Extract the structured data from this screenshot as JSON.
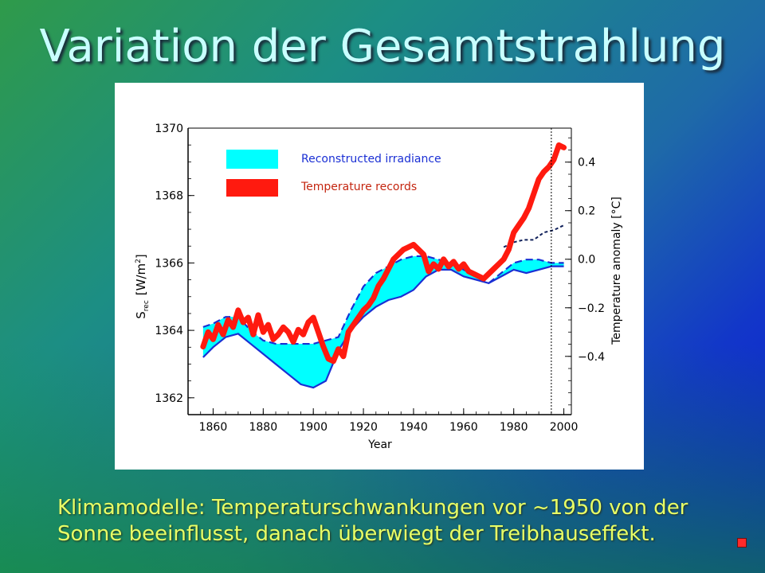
{
  "slide": {
    "title": "Variation der Gesamtstrahlung",
    "caption_line1": "Klimamodelle: Temperaturschwankungen vor ~1950 von der",
    "caption_line2": "Sonne beeinflusst, danach überwiegt der Treibhauseffekt."
  },
  "colors": {
    "irradiance_fill": "#00ffff",
    "irradiance_line": "#1a2fd4",
    "temperature": "#ff1a0f",
    "title_text": "#c8ffff",
    "caption_text": "#e8ff66"
  },
  "chart_data": {
    "type": "area",
    "xlabel": "Year",
    "ylabel_left": "S_rec [W/m²]",
    "ylabel_left_main": "S",
    "ylabel_left_sub": "rec",
    "ylabel_left_unit": "[W/m",
    "ylabel_left_sup": "2",
    "ylabel_left_close": "]",
    "ylabel_right": "Temperature anomaly [°C]",
    "xlim": [
      1850,
      2003
    ],
    "ylim_left": [
      1361.5,
      1370
    ],
    "ylim_right": [
      -0.64,
      0.54
    ],
    "x_ticks": [
      "1860",
      "1880",
      "1900",
      "1920",
      "1940",
      "1960",
      "1980",
      "2000"
    ],
    "y_left_ticks": [
      "1362",
      "1364",
      "1366",
      "1368",
      "1370"
    ],
    "y_right_ticks": [
      "-0.4",
      "-0.2",
      "0.0",
      "0.2",
      "0.4"
    ],
    "vertical_marker_year": 1995,
    "legend": [
      {
        "label": "Reconstructed irradiance",
        "color": "#00ffff"
      },
      {
        "label": "Temperature records",
        "color": "#ff1a0f"
      }
    ],
    "series": [
      {
        "name": "Reconstructed irradiance",
        "kind": "band",
        "x": [
          1856,
          1860,
          1865,
          1870,
          1875,
          1880,
          1885,
          1890,
          1895,
          1900,
          1905,
          1910,
          1915,
          1920,
          1925,
          1930,
          1935,
          1940,
          1945,
          1950,
          1955,
          1960,
          1965,
          1970,
          1975,
          1980,
          1985,
          1990,
          1995,
          2000
        ],
        "upper": [
          1364.1,
          1364.2,
          1364.4,
          1364.4,
          1364.0,
          1363.7,
          1363.6,
          1363.6,
          1363.6,
          1363.6,
          1363.7,
          1363.8,
          1364.6,
          1365.3,
          1365.7,
          1365.9,
          1366.1,
          1366.2,
          1366.2,
          1366.1,
          1366.0,
          1365.8,
          1365.6,
          1365.4,
          1365.7,
          1366.0,
          1366.1,
          1366.1,
          1366.0,
          1366.0
        ],
        "lower": [
          1363.2,
          1363.5,
          1363.8,
          1363.9,
          1363.6,
          1363.3,
          1363.0,
          1362.7,
          1362.4,
          1362.3,
          1362.5,
          1363.4,
          1364.0,
          1364.4,
          1364.7,
          1364.9,
          1365.0,
          1365.2,
          1365.6,
          1365.8,
          1365.8,
          1365.6,
          1365.5,
          1365.4,
          1365.6,
          1365.8,
          1365.7,
          1365.8,
          1365.9,
          1365.9
        ]
      },
      {
        "name": "Temperature records",
        "kind": "thick-line",
        "axis": "right",
        "x": [
          1856,
          1858,
          1860,
          1862,
          1864,
          1866,
          1868,
          1870,
          1872,
          1874,
          1876,
          1878,
          1880,
          1882,
          1884,
          1886,
          1888,
          1890,
          1892,
          1894,
          1896,
          1898,
          1900,
          1902,
          1904,
          1906,
          1908,
          1910,
          1912,
          1914,
          1916,
          1918,
          1920,
          1922,
          1924,
          1926,
          1928,
          1930,
          1932,
          1934,
          1936,
          1938,
          1940,
          1942,
          1944,
          1946,
          1948,
          1950,
          1952,
          1954,
          1956,
          1958,
          1960,
          1962,
          1964,
          1966,
          1968,
          1970,
          1972,
          1974,
          1976,
          1978,
          1980,
          1982,
          1984,
          1986,
          1988,
          1990,
          1992,
          1994,
          1996,
          1998,
          2000
        ],
        "values": [
          -0.36,
          -0.3,
          -0.33,
          -0.27,
          -0.31,
          -0.25,
          -0.28,
          -0.21,
          -0.26,
          -0.24,
          -0.31,
          -0.23,
          -0.3,
          -0.27,
          -0.33,
          -0.31,
          -0.28,
          -0.3,
          -0.34,
          -0.29,
          -0.31,
          -0.26,
          -0.24,
          -0.3,
          -0.36,
          -0.41,
          -0.42,
          -0.37,
          -0.4,
          -0.3,
          -0.27,
          -0.24,
          -0.21,
          -0.19,
          -0.16,
          -0.11,
          -0.08,
          -0.04,
          0.0,
          0.02,
          0.04,
          0.05,
          0.06,
          0.04,
          0.02,
          -0.05,
          -0.02,
          -0.04,
          0.0,
          -0.03,
          -0.01,
          -0.04,
          -0.02,
          -0.05,
          -0.06,
          -0.07,
          -0.08,
          -0.06,
          -0.04,
          -0.02,
          0.0,
          0.04,
          0.11,
          0.14,
          0.17,
          0.21,
          0.27,
          0.33,
          0.36,
          0.38,
          0.41,
          0.47,
          0.46
        ]
      },
      {
        "name": "Irradiance extension",
        "kind": "dashed-line",
        "axis": "right",
        "x": [
          1976,
          1980,
          1984,
          1988,
          1992,
          1996,
          2000
        ],
        "values": [
          0.05,
          0.07,
          0.08,
          0.08,
          0.11,
          0.12,
          0.14
        ]
      }
    ]
  }
}
